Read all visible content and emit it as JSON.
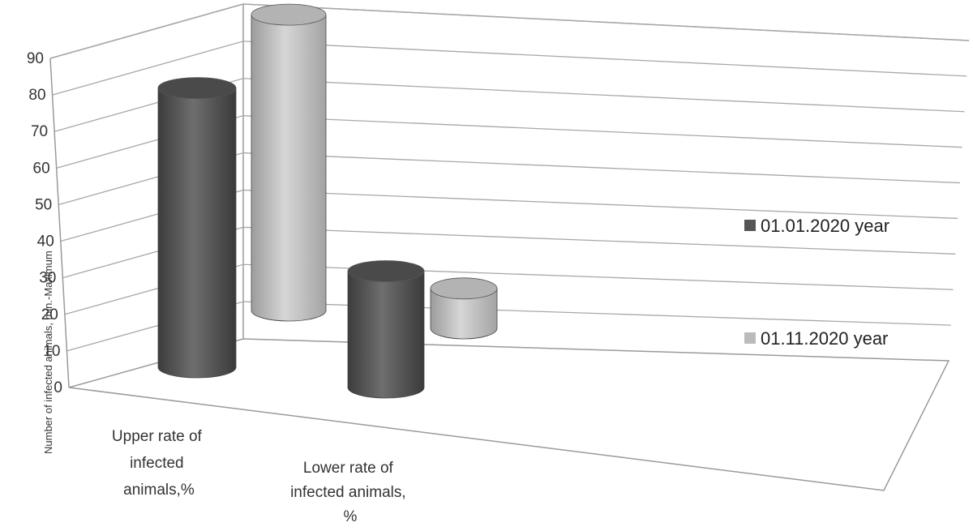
{
  "chart_data": {
    "type": "bar",
    "style": "3d-cylinder",
    "categories": [
      [
        "Upper rate of",
        "infected",
        "animals,%"
      ],
      [
        "Lower rate of",
        "infected animals,",
        "%"
      ]
    ],
    "series": [
      {
        "name": "01.01.2020 year",
        "values": [
          84,
          35
        ],
        "color": "#555555"
      },
      {
        "name": "01.11.2020 year",
        "values": [
          89,
          12
        ],
        "color": "#bbbbbb"
      }
    ],
    "ylabel": "Number of infected animals, min.-Maximum",
    "ylim": [
      0,
      90
    ],
    "yticks": [
      0,
      10,
      20,
      30,
      40,
      50,
      60,
      70,
      80,
      90
    ],
    "grid": true,
    "legend": "right"
  }
}
